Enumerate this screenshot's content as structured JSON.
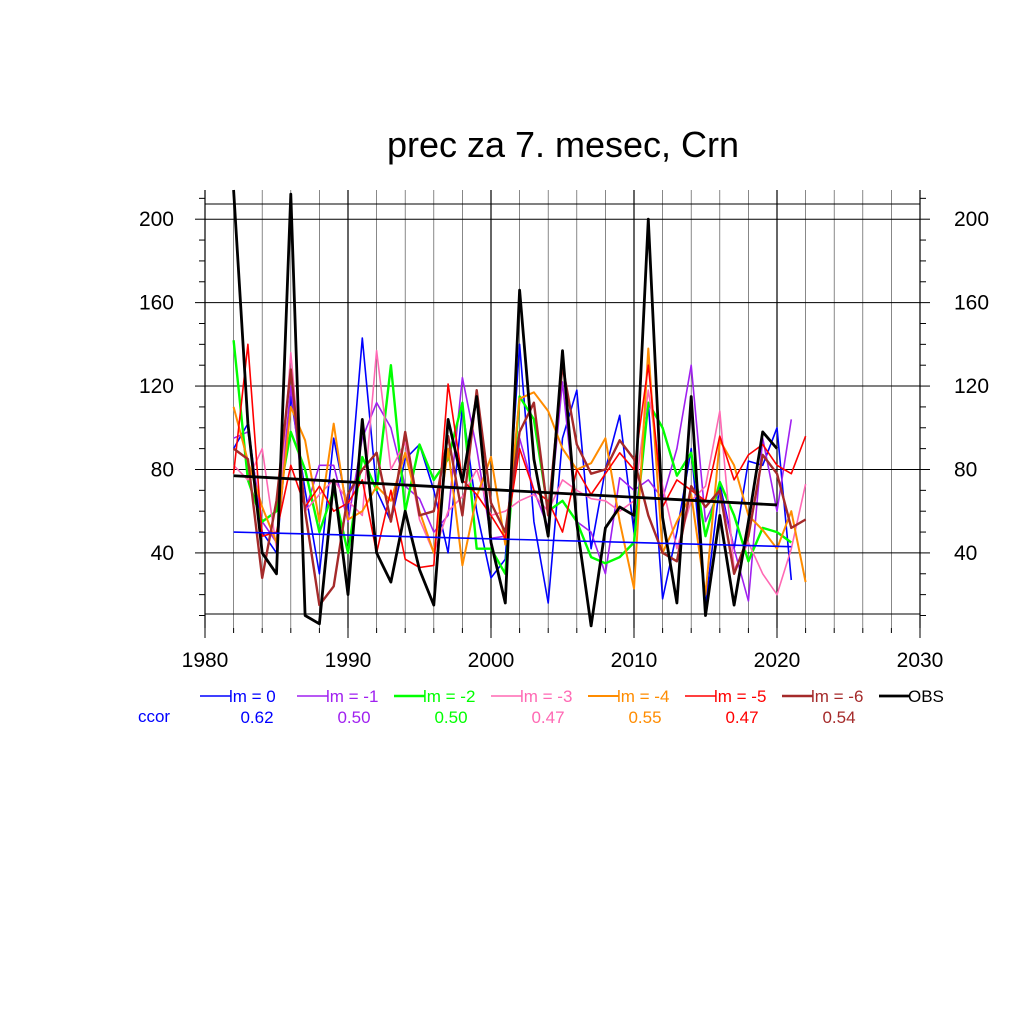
{
  "chart_data": {
    "type": "line",
    "title": "prec za 7. mesec, Crn",
    "xlabel": "",
    "ylabel": "",
    "xlim": [
      1980,
      2030
    ],
    "ylim": [
      4,
      214
    ],
    "x_ticks": [
      1980,
      1990,
      2000,
      2010,
      2020,
      2030
    ],
    "y_ticks": [
      40,
      80,
      120,
      160,
      200
    ],
    "grid": true,
    "legend_position": "bottom",
    "ccor_label": "ccor",
    "series": [
      {
        "name": "lm = 0",
        "color": "#0000ff",
        "ccor": "0.62",
        "width": 1.6,
        "x": [
          1982,
          1983,
          1984,
          1985,
          1986,
          1987,
          1988,
          1989,
          1990,
          1991,
          1992,
          1993,
          1994,
          1995,
          1996,
          1997,
          1998,
          1999,
          2000,
          2001,
          2002,
          2003,
          2004,
          2005,
          2006,
          2007,
          2008,
          2009,
          2010,
          2011,
          2012,
          2013,
          2014,
          2015,
          2016,
          2017,
          2018,
          2019,
          2020,
          2021
        ],
        "y": [
          90,
          102,
          50,
          40,
          115,
          70,
          30,
          95,
          60,
          143,
          70,
          55,
          85,
          92,
          70,
          40,
          110,
          60,
          28,
          37,
          140,
          55,
          16,
          95,
          118,
          42,
          80,
          106,
          50,
          112,
          18,
          50,
          90,
          15,
          73,
          42,
          84,
          82,
          100,
          27
        ]
      },
      {
        "name": "lm = -1",
        "color": "#a020f0",
        "ccor": "0.50",
        "width": 1.6,
        "x": [
          1982,
          1983,
          1984,
          1985,
          1986,
          1987,
          1988,
          1989,
          1990,
          1991,
          1992,
          1993,
          1994,
          1995,
          1996,
          1997,
          1998,
          1999,
          2000,
          2001,
          2002,
          2003,
          2004,
          2005,
          2006,
          2007,
          2008,
          2009,
          2010,
          2011,
          2012,
          2013,
          2014,
          2015,
          2016,
          2017,
          2018,
          2019,
          2020,
          2021
        ],
        "y": [
          95,
          98,
          55,
          45,
          120,
          60,
          82,
          82,
          55,
          95,
          112,
          100,
          72,
          66,
          50,
          58,
          124,
          90,
          47,
          48,
          95,
          70,
          52,
          122,
          55,
          50,
          30,
          76,
          70,
          75,
          66,
          90,
          130,
          55,
          70,
          42,
          17,
          95,
          60,
          104
        ]
      },
      {
        "name": "lm = -2",
        "color": "#00ff00",
        "ccor": "0.50",
        "width": 2.4,
        "x": [
          1982,
          1983,
          1984,
          1985,
          1986,
          1987,
          1988,
          1989,
          1990,
          1991,
          1992,
          1993,
          1994,
          1995,
          1996,
          1997,
          1998,
          1999,
          2000,
          2001,
          2002,
          2003,
          2004,
          2005,
          2006,
          2007,
          2008,
          2009,
          2010,
          2011,
          2012,
          2013,
          2014,
          2015,
          2016,
          2017,
          2018,
          2019,
          2020,
          2021
        ],
        "y": [
          142,
          75,
          55,
          60,
          98,
          80,
          50,
          70,
          40,
          86,
          70,
          130,
          60,
          92,
          75,
          85,
          112,
          42,
          42,
          30,
          115,
          104,
          60,
          65,
          55,
          38,
          35,
          38,
          45,
          112,
          100,
          77,
          88,
          48,
          74,
          58,
          36,
          52,
          50,
          45
        ]
      },
      {
        "name": "lm = -3",
        "color": "#ff69b4",
        "ccor": "0.47",
        "width": 1.6,
        "x": [
          1982,
          1983,
          1984,
          1985,
          1986,
          1987,
          1988,
          1989,
          1990,
          1991,
          1992,
          1993,
          1994,
          1995,
          1996,
          1997,
          1998,
          1999,
          2000,
          2001,
          2002,
          2003,
          2004,
          2005,
          2006,
          2007,
          2008,
          2009,
          2010,
          2011,
          2012,
          2013,
          2014,
          2015,
          2016,
          2017,
          2018,
          2019,
          2020,
          2021,
          2022
        ],
        "y": [
          82,
          75,
          90,
          42,
          136,
          60,
          68,
          75,
          65,
          58,
          137,
          80,
          93,
          56,
          40,
          60,
          67,
          80,
          58,
          60,
          65,
          68,
          60,
          75,
          70,
          66,
          65,
          60,
          65,
          118,
          72,
          42,
          65,
          72,
          108,
          32,
          45,
          30,
          20,
          42,
          73
        ]
      },
      {
        "name": "lm = -4",
        "color": "#ff8c00",
        "ccor": "0.55",
        "width": 2.0,
        "x": [
          1982,
          1983,
          1984,
          1985,
          1986,
          1987,
          1988,
          1989,
          1990,
          1991,
          1992,
          1993,
          1994,
          1995,
          1996,
          1997,
          1998,
          1999,
          2000,
          2001,
          2002,
          2003,
          2004,
          2005,
          2006,
          2007,
          2008,
          2009,
          2010,
          2011,
          2012,
          2013,
          2014,
          2015,
          2016,
          2017,
          2018,
          2019,
          2020,
          2021,
          2022
        ],
        "y": [
          110,
          84,
          62,
          45,
          110,
          94,
          55,
          102,
          56,
          60,
          72,
          65,
          88,
          60,
          40,
          90,
          34,
          67,
          86,
          44,
          114,
          117,
          108,
          90,
          80,
          83,
          95,
          55,
          23,
          138,
          40,
          55,
          68,
          20,
          94,
          82,
          58,
          51,
          42,
          60,
          26
        ]
      },
      {
        "name": "lm = -5",
        "color": "#ff0000",
        "ccor": "0.47",
        "width": 1.6,
        "x": [
          1982,
          1983,
          1984,
          1985,
          1986,
          1987,
          1988,
          1989,
          1990,
          1991,
          1992,
          1993,
          1994,
          1995,
          1996,
          1997,
          1998,
          1999,
          2000,
          2001,
          2002,
          2003,
          2004,
          2005,
          2006,
          2007,
          2008,
          2009,
          2010,
          2011,
          2012,
          2013,
          2014,
          2015,
          2016,
          2017,
          2018,
          2019,
          2020,
          2021,
          2022
        ],
        "y": [
          78,
          140,
          48,
          50,
          82,
          62,
          72,
          60,
          64,
          75,
          40,
          70,
          37,
          33,
          34,
          121,
          75,
          68,
          58,
          47,
          90,
          70,
          65,
          50,
          80,
          68,
          78,
          88,
          80,
          130,
          62,
          75,
          70,
          65,
          96,
          75,
          87,
          92,
          82,
          78,
          96
        ]
      },
      {
        "name": "lm = -6",
        "color": "#a52a2a",
        "ccor": "0.54",
        "width": 2.4,
        "x": [
          1982,
          1983,
          1984,
          1985,
          1986,
          1987,
          1988,
          1989,
          1990,
          1991,
          1992,
          1993,
          1994,
          1995,
          1996,
          1997,
          1998,
          1999,
          2000,
          2001,
          2002,
          2003,
          2004,
          2005,
          2006,
          2007,
          2008,
          2009,
          2010,
          2011,
          2012,
          2013,
          2014,
          2015,
          2016,
          2017,
          2018,
          2019,
          2020,
          2021,
          2022
        ],
        "y": [
          90,
          85,
          28,
          65,
          128,
          60,
          15,
          24,
          68,
          80,
          88,
          55,
          98,
          58,
          60,
          96,
          58,
          118,
          64,
          50,
          98,
          112,
          58,
          130,
          92,
          78,
          80,
          94,
          85,
          58,
          40,
          36,
          72,
          62,
          70,
          30,
          48,
          87,
          78,
          52,
          56
        ]
      },
      {
        "name": "OBS",
        "color": "#000000",
        "ccor": "",
        "width": 2.8,
        "x": [
          1982,
          1983,
          1984,
          1985,
          1986,
          1987,
          1988,
          1989,
          1990,
          1991,
          1992,
          1993,
          1994,
          1995,
          1996,
          1997,
          1998,
          1999,
          2000,
          2001,
          2002,
          2003,
          2004,
          2005,
          2006,
          2007,
          2008,
          2009,
          2010,
          2011,
          2012,
          2013,
          2014,
          2015,
          2016,
          2017,
          2018,
          2019,
          2020
        ],
        "y": [
          214,
          102,
          40,
          30,
          212,
          10,
          6,
          75,
          20,
          104,
          40,
          26,
          60,
          32,
          15,
          104,
          74,
          115,
          45,
          16,
          166,
          85,
          48,
          137,
          54,
          5,
          52,
          62,
          58,
          200,
          57,
          16,
          115,
          10,
          58,
          15,
          55,
          98,
          90
        ]
      }
    ],
    "trend_lines": [
      {
        "name": "lm = 0 trend",
        "color": "#0000ff",
        "width": 1.6,
        "x": [
          1982,
          2021
        ],
        "y": [
          50,
          43
        ]
      },
      {
        "name": "OBS trend",
        "color": "#000000",
        "width": 2.8,
        "x": [
          1982,
          2020
        ],
        "y": [
          77,
          63
        ]
      }
    ]
  }
}
